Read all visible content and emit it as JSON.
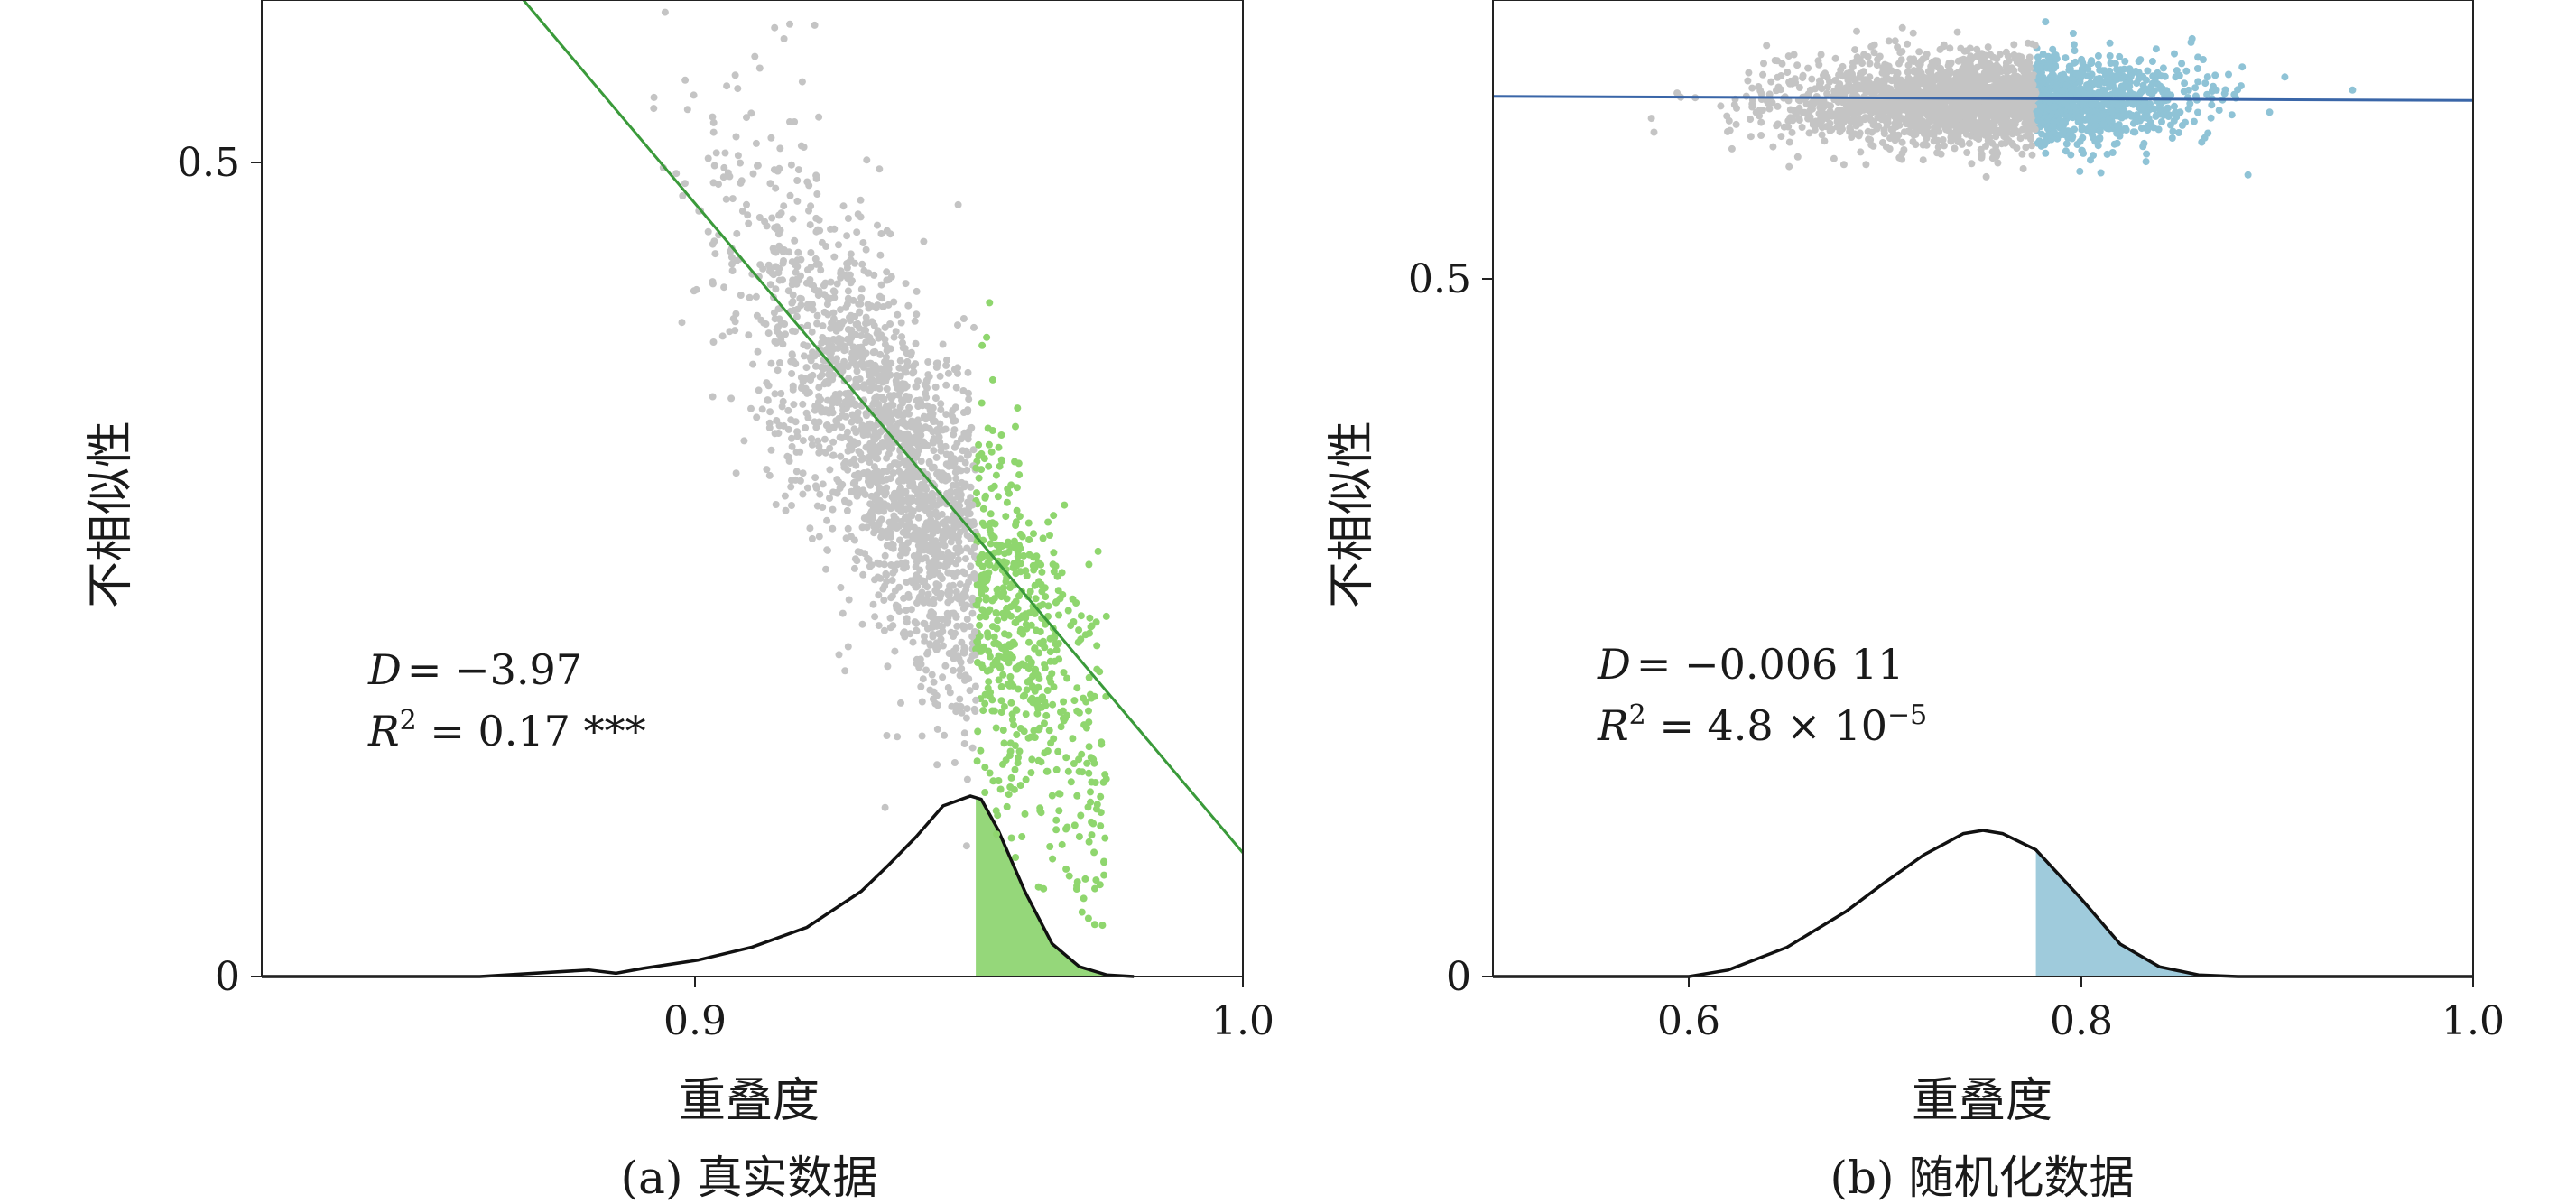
{
  "chart_data": [
    {
      "type": "scatter",
      "panel": "a",
      "caption": "(a) 真实数据",
      "xlabel": "重叠度",
      "ylabel": "不相似性",
      "xlim": [
        0.82,
        1.0
      ],
      "ylim": [
        0,
        0.6
      ],
      "x_ticks": [
        0.9,
        1.0
      ],
      "x_tick_labels": [
        "0.9",
        "1.0"
      ],
      "y_ticks": [
        0,
        0.5
      ],
      "y_tick_labels": [
        "0",
        "0.5"
      ],
      "colors": {
        "background_points": "#c4c4c4",
        "highlight_points": "#8fd66e",
        "fit_line": "#3a9a3a",
        "density_fill": "#95d77a",
        "density_line": "#111111"
      },
      "scatter": {
        "n_points": 2400,
        "trend_center_x": 0.94,
        "trend_center_y": 0.3,
        "trend_slope": -4.6,
        "spread_along_x": 0.016,
        "spread_perp_y": 0.055,
        "x_max": 0.975,
        "highlight_threshold_x": 0.951
      },
      "fit_line": {
        "slope": -3.97,
        "x": [
          0.868,
          1.0
        ],
        "y": [
          0.6,
          0.076
        ]
      },
      "density": {
        "x": [
          0.82,
          0.86,
          0.88,
          0.885,
          0.89,
          0.9,
          0.91,
          0.92,
          0.93,
          0.935,
          0.94,
          0.945,
          0.95,
          0.952,
          0.955,
          0.96,
          0.965,
          0.97,
          0.975,
          0.98
        ],
        "y": [
          0.0,
          0.0,
          0.004,
          0.002,
          0.005,
          0.01,
          0.018,
          0.03,
          0.052,
          0.068,
          0.085,
          0.104,
          0.11,
          0.108,
          0.09,
          0.052,
          0.02,
          0.006,
          0.001,
          0.0
        ]
      },
      "annotations": {
        "d_label": "D",
        "d_value": "= −3.97",
        "r2_label": "R",
        "r2_sup": "2",
        "r2_value": " = 0.17 ***"
      }
    },
    {
      "type": "scatter",
      "panel": "b",
      "caption": "(b) 随机化数据",
      "xlabel": "重叠度",
      "ylabel": "不相似性",
      "xlim": [
        0.5,
        1.0
      ],
      "ylim": [
        0,
        0.7
      ],
      "x_ticks": [
        0.6,
        0.8,
        1.0
      ],
      "x_tick_labels": [
        "0.6",
        "0.8",
        "1.0"
      ],
      "y_ticks": [
        0,
        0.5
      ],
      "y_tick_labels": [
        "0",
        "0.5"
      ],
      "colors": {
        "background_points": "#c4c4c4",
        "highlight_points": "#8fc3d6",
        "fit_line": "#3a66a8",
        "density_fill": "#9fcbdc",
        "density_line": "#111111"
      },
      "scatter": {
        "n_points": 2600,
        "center_x": 0.75,
        "center_y": 0.628,
        "spread_x": 0.05,
        "spread_y": 0.016,
        "highlight_threshold_x": 0.777
      },
      "fit_line": {
        "slope": -0.00611,
        "x": [
          0.5,
          1.0
        ],
        "y": [
          0.631,
          0.628
        ]
      },
      "density": {
        "x": [
          0.5,
          0.6,
          0.62,
          0.65,
          0.68,
          0.7,
          0.72,
          0.74,
          0.75,
          0.76,
          0.777,
          0.8,
          0.82,
          0.84,
          0.86,
          0.88,
          1.0
        ],
        "y": [
          0.0,
          0.0,
          0.004,
          0.018,
          0.04,
          0.058,
          0.075,
          0.088,
          0.09,
          0.088,
          0.078,
          0.048,
          0.02,
          0.006,
          0.001,
          0.0,
          0.0
        ]
      },
      "annotations": {
        "d_label": "D",
        "d_value": "= −0.006 11",
        "r2_label": "R",
        "r2_sup": "2",
        "r2_value": " = 4.8 × 10",
        "r2_exp": "−5"
      }
    }
  ]
}
